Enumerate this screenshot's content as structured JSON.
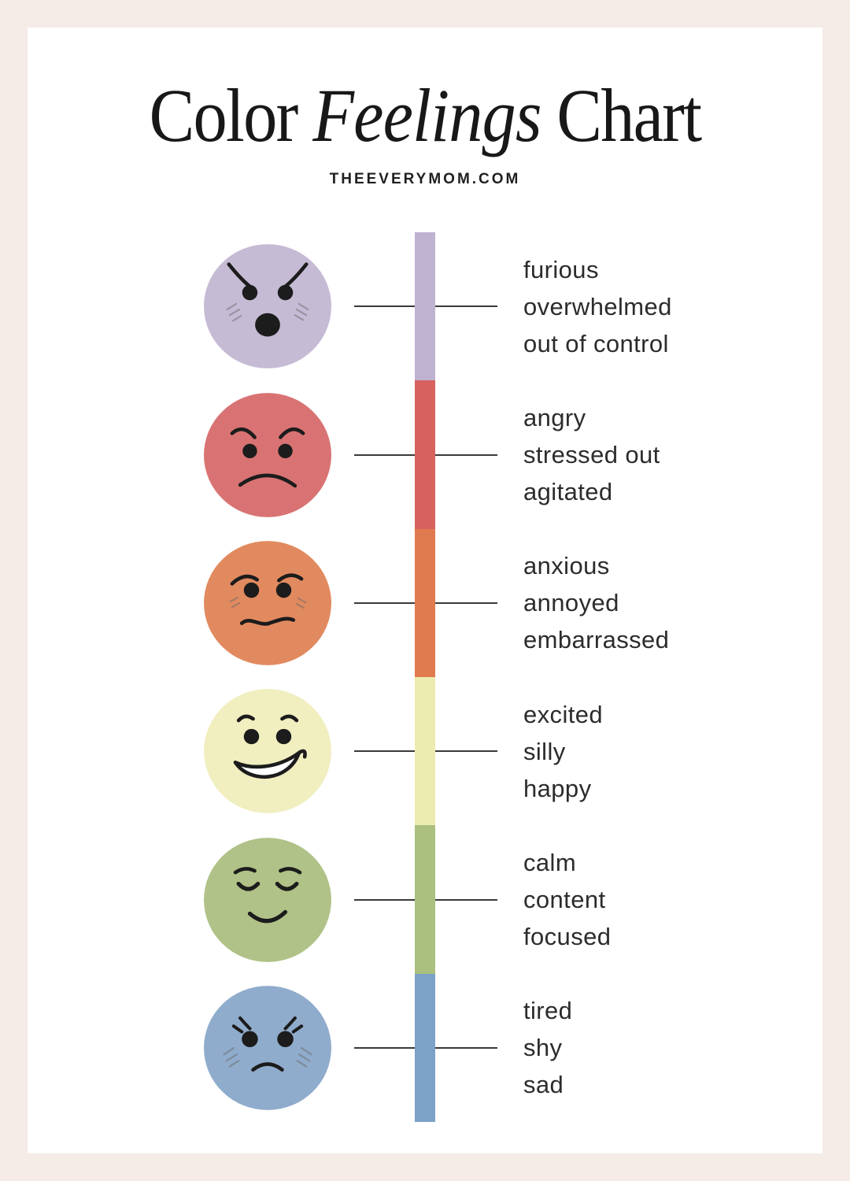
{
  "title": {
    "word1": "Color",
    "word2": "Feelings",
    "word3": "Chart"
  },
  "subtitle": "THEEVERYMOM.COM",
  "colors": {
    "border_background": "#f5ebe7",
    "page_background": "#ffffff",
    "text": "#2c2c2c",
    "connector_line": "#3a3a3a",
    "title_text": "#181818"
  },
  "chart_data": {
    "type": "table",
    "title": "Color Feelings Chart",
    "source": "THEEVERYMOM.COM",
    "legend_position": "right",
    "rows": [
      {
        "color_name": "purple",
        "hex": "#bfb2d1",
        "face_hex": "#c6bbd5",
        "expression": "furious",
        "feelings": [
          "furious",
          "overwhelmed",
          "out of control"
        ]
      },
      {
        "color_name": "red",
        "hex": "#d6615f",
        "face_hex": "#d97373",
        "expression": "angry",
        "feelings": [
          "angry",
          "stressed out",
          "agitated"
        ]
      },
      {
        "color_name": "orange",
        "hex": "#e07b50",
        "face_hex": "#e28a5f",
        "expression": "worried",
        "feelings": [
          "anxious",
          "annoyed",
          "embarrassed"
        ]
      },
      {
        "color_name": "yellow",
        "hex": "#edecb0",
        "face_hex": "#f1eec0",
        "expression": "grinning",
        "feelings": [
          "excited",
          "silly",
          "happy"
        ]
      },
      {
        "color_name": "green",
        "hex": "#abc07e",
        "face_hex": "#b0c287",
        "expression": "content",
        "feelings": [
          "calm",
          "content",
          "focused"
        ]
      },
      {
        "color_name": "blue",
        "hex": "#7ba2c7",
        "face_hex": "#90accc",
        "expression": "sad",
        "feelings": [
          "tired",
          "shy",
          "sad"
        ]
      }
    ]
  }
}
